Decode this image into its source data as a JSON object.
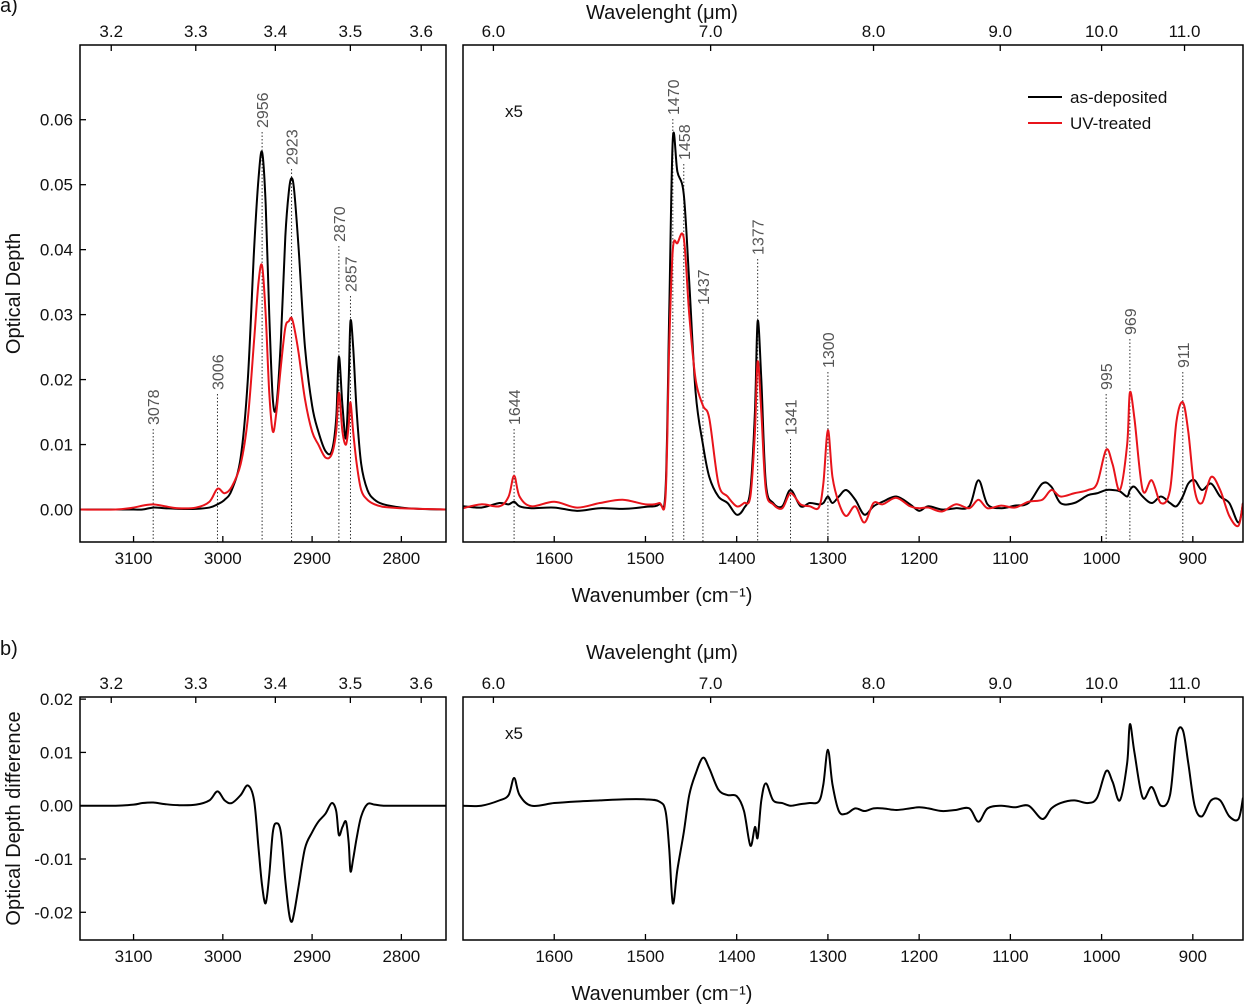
{
  "chart_data": [
    {
      "type": "line",
      "panel_label": "a)",
      "ylabel": "Optical Depth",
      "x": [
        3160,
        3120,
        3100,
        3090,
        3078,
        3065,
        3050,
        3030,
        3015,
        3006,
        2998,
        2990,
        2980,
        2972,
        2965,
        2960,
        2956,
        2952,
        2948,
        2944,
        2940,
        2935,
        2930,
        2926,
        2923,
        2920,
        2915,
        2908,
        2900,
        2893,
        2885,
        2878,
        2873,
        2870,
        2866,
        2862,
        2859,
        2857,
        2854,
        2850,
        2845,
        2838,
        2830,
        2820,
        2800,
        2780,
        2750
      ],
      "xlim": [
        3160,
        2750
      ],
      "xticks": [
        3100,
        3000,
        2900,
        2800
      ],
      "x2ticks": [
        3.2,
        3.3,
        3.4,
        3.5,
        3.6
      ],
      "ylim": [
        -0.005,
        0.0715
      ],
      "yticks": [
        {
          "value": 0,
          "label": "0.00"
        },
        0.01,
        0.02,
        0.03,
        0.04,
        0.05,
        0.06
      ],
      "series": [
        {
          "color": "#000000",
          "values": [
            0,
            0,
            0,
            0,
            0.0003,
            0.0002,
            0.0001,
            0.0001,
            0.0003,
            0.0008,
            0.0015,
            0.003,
            0.008,
            0.02,
            0.04,
            0.051,
            0.055,
            0.047,
            0.03,
            0.017,
            0.016,
            0.026,
            0.042,
            0.049,
            0.051,
            0.049,
            0.04,
            0.025,
            0.016,
            0.012,
            0.009,
            0.009,
            0.014,
            0.0235,
            0.016,
            0.011,
            0.02,
            0.029,
            0.025,
            0.015,
            0.007,
            0.003,
            0.0015,
            0.0008,
            0.0003,
            0.0001,
            0
          ]
        },
        {
          "color": "#e8141b",
          "values": [
            0,
            0,
            0.0003,
            0.0006,
            0.0008,
            0.0005,
            0.0002,
            0.0003,
            0.0012,
            0.0032,
            0.0025,
            0.0035,
            0.007,
            0.014,
            0.026,
            0.035,
            0.0375,
            0.03,
            0.018,
            0.012,
            0.015,
            0.022,
            0.028,
            0.029,
            0.0295,
            0.028,
            0.024,
            0.017,
            0.012,
            0.01,
            0.008,
            0.0085,
            0.012,
            0.018,
            0.012,
            0.01,
            0.013,
            0.0165,
            0.012,
            0.007,
            0.003,
            0.0015,
            0.0008,
            0.0004,
            0.0002,
            0.0001,
            0
          ]
        }
      ],
      "peak_labels": [
        3078,
        3006,
        2956,
        2923,
        2870,
        2857
      ]
    },
    {
      "type": "line",
      "xlabel": "Wavenumber (cm⁻¹)",
      "x2label": "Wavelenght (μm)",
      "annotation": "x5",
      "legend": "upper right",
      "x": [
        1700,
        1680,
        1660,
        1650,
        1644,
        1638,
        1625,
        1600,
        1575,
        1550,
        1525,
        1500,
        1485,
        1478,
        1474,
        1470,
        1465,
        1458,
        1452,
        1445,
        1437,
        1430,
        1420,
        1410,
        1400,
        1392,
        1385,
        1380,
        1377,
        1373,
        1368,
        1360,
        1350,
        1341,
        1330,
        1320,
        1310,
        1305,
        1300,
        1295,
        1288,
        1280,
        1270,
        1260,
        1250,
        1240,
        1225,
        1210,
        1200,
        1190,
        1175,
        1160,
        1145,
        1135,
        1125,
        1110,
        1095,
        1080,
        1065,
        1055,
        1045,
        1030,
        1015,
        1005,
        995,
        988,
        980,
        972,
        969,
        964,
        955,
        945,
        935,
        925,
        918,
        911,
        905,
        898,
        890,
        880,
        870,
        860,
        850,
        845
      ],
      "xlim": [
        1700,
        845
      ],
      "xticks": [
        1600,
        1500,
        1400,
        1300,
        1200,
        1100,
        1000,
        900
      ],
      "x2ticks": [
        {
          "value": 6,
          "label": "6.0"
        },
        {
          "value": 7,
          "label": "7.0"
        },
        {
          "value": 8,
          "label": "8.0"
        },
        {
          "value": 9,
          "label": "9.0"
        },
        {
          "value": 10,
          "label": "10.0"
        },
        {
          "value": 11,
          "label": "11.0"
        }
      ],
      "ylim": [
        -0.005,
        0.0715
      ],
      "series": [
        {
          "name": "as-deposited",
          "color": "#000000",
          "values": [
            0.0005,
            0.0003,
            0.001,
            0.0008,
            0.0012,
            0.0005,
            0.0002,
            0.0003,
            -0.0002,
            0.0002,
            0.0001,
            0.0004,
            0.0008,
            0.003,
            0.03,
            0.057,
            0.052,
            0.0485,
            0.035,
            0.018,
            0.01,
            0.005,
            0.002,
            0.001,
            -0.0008,
            0.0002,
            0.003,
            0.015,
            0.029,
            0.02,
            0.004,
            0.001,
            0.0005,
            0.003,
            0.0005,
            0.001,
            0.0008,
            0.001,
            0.002,
            0.001,
            0.002,
            0.003,
            0.0015,
            -0.0008,
            0.0005,
            0.0012,
            0.002,
            0.0008,
            -0.0002,
            0.0005,
            0,
            0.0002,
            0.0005,
            0.0045,
            0.0008,
            0.0002,
            0.0006,
            0.001,
            0.004,
            0.0035,
            0.001,
            0.001,
            0.0022,
            0.0025,
            0.003,
            0.003,
            0.0028,
            0.002,
            0.003,
            0.0035,
            0.002,
            0.001,
            0.002,
            0.001,
            0.0005,
            0.002,
            0.004,
            0.0045,
            0.003,
            0.004,
            0.002,
            0.001,
            -0.002,
            0.001
          ]
        },
        {
          "name": "UV-treated",
          "color": "#e8141b",
          "values": [
            0.0002,
            0.0008,
            0.0005,
            0.002,
            0.0052,
            0.002,
            0.0005,
            0.0012,
            0.0003,
            0.001,
            0.0015,
            0.0008,
            0.001,
            0.002,
            0.025,
            0.04,
            0.041,
            0.0418,
            0.03,
            0.02,
            0.016,
            0.014,
            0.004,
            0.002,
            0.0005,
            0.001,
            0.002,
            0.012,
            0.0228,
            0.015,
            0.003,
            0.0008,
            0.0002,
            0.0025,
            0.0008,
            0.0005,
            0.0003,
            0.004,
            0.0122,
            0.005,
            0.001,
            -0.001,
            0.0005,
            -0.002,
            0.001,
            0.0008,
            0.0018,
            0.0005,
            0.0002,
            0.0003,
            -0.0003,
            0.0008,
            0.0002,
            0.0015,
            0.0002,
            0.0006,
            0.0003,
            0.0012,
            0.0015,
            0.003,
            0.002,
            0.0025,
            0.003,
            0.004,
            0.0092,
            0.007,
            0.003,
            0.01,
            0.018,
            0.014,
            0.003,
            0.0045,
            0.001,
            0.003,
            0.0135,
            0.0165,
            0.012,
            0.003,
            0.001,
            0.005,
            0.003,
            -0.001,
            -0.0025,
            0.001
          ]
        }
      ],
      "peak_labels": [
        1644,
        1470,
        1458,
        1437,
        1377,
        1341,
        1300,
        995,
        969,
        911
      ]
    },
    {
      "type": "line",
      "panel_label": "b)",
      "ylabel": "Optical Depth difference",
      "x": [
        3160,
        3120,
        3100,
        3090,
        3078,
        3065,
        3050,
        3030,
        3015,
        3006,
        2998,
        2990,
        2980,
        2972,
        2965,
        2960,
        2956,
        2952,
        2948,
        2944,
        2940,
        2935,
        2930,
        2926,
        2923,
        2920,
        2915,
        2908,
        2900,
        2893,
        2885,
        2878,
        2873,
        2870,
        2866,
        2862,
        2859,
        2857,
        2854,
        2850,
        2845,
        2838,
        2830,
        2820,
        2800,
        2780,
        2750
      ],
      "xlim": [
        3160,
        2750
      ],
      "xticks": [
        3100,
        3000,
        2900,
        2800
      ],
      "x2ticks": [
        3.2,
        3.3,
        3.4,
        3.5,
        3.6
      ],
      "ylim": [
        -0.0252,
        0.0204
      ],
      "yticks": [
        -0.02,
        -0.01,
        {
          "value": 0,
          "label": "0.00"
        },
        0.01,
        0.02
      ],
      "series": [
        {
          "color": "#000000",
          "values": [
            0,
            0,
            0.0002,
            0.0005,
            0.0006,
            0.0003,
            0.0001,
            0.0002,
            0.001,
            0.0027,
            0.001,
            0.0005,
            0.002,
            0.0038,
            0.001,
            -0.008,
            -0.015,
            -0.0183,
            -0.013,
            -0.005,
            -0.0033,
            -0.005,
            -0.014,
            -0.02,
            -0.0218,
            -0.02,
            -0.015,
            -0.008,
            -0.005,
            -0.003,
            -0.0015,
            0.0005,
            -0.001,
            -0.0055,
            -0.004,
            -0.003,
            -0.007,
            -0.0123,
            -0.01,
            -0.006,
            -0.002,
            0.0003,
            0.0002,
            0,
            0,
            0,
            0
          ]
        }
      ]
    },
    {
      "type": "line",
      "xlabel": "Wavenumber (cm⁻¹)",
      "x2label": "Wavelenght (μm)",
      "annotation": "x5",
      "x": [
        1700,
        1680,
        1660,
        1650,
        1644,
        1638,
        1625,
        1600,
        1575,
        1550,
        1525,
        1500,
        1485,
        1478,
        1474,
        1470,
        1465,
        1458,
        1452,
        1445,
        1437,
        1430,
        1420,
        1410,
        1400,
        1392,
        1385,
        1380,
        1377,
        1373,
        1368,
        1360,
        1350,
        1341,
        1330,
        1320,
        1310,
        1305,
        1300,
        1295,
        1288,
        1280,
        1270,
        1260,
        1250,
        1240,
        1225,
        1210,
        1200,
        1190,
        1175,
        1160,
        1145,
        1135,
        1125,
        1110,
        1095,
        1080,
        1065,
        1055,
        1045,
        1030,
        1015,
        1005,
        995,
        988,
        980,
        972,
        969,
        964,
        955,
        945,
        935,
        925,
        918,
        911,
        905,
        898,
        890,
        880,
        870,
        860,
        850,
        845
      ],
      "xlim": [
        1700,
        845
      ],
      "xticks": [
        1600,
        1500,
        1400,
        1300,
        1200,
        1100,
        1000,
        900
      ],
      "x2ticks": [
        {
          "value": 6,
          "label": "6.0"
        },
        {
          "value": 7,
          "label": "7.0"
        },
        {
          "value": 8,
          "label": "8.0"
        },
        {
          "value": 9,
          "label": "9.0"
        },
        {
          "value": 10,
          "label": "10.0"
        },
        {
          "value": 11,
          "label": "11.0"
        }
      ],
      "ylim": [
        -0.0252,
        0.0204
      ],
      "series": [
        {
          "color": "#000000",
          "values": [
            0,
            0,
            0.001,
            0.002,
            0.0052,
            0.002,
            0,
            0.0005,
            0.0008,
            0.001,
            0.0012,
            0.0012,
            0.0008,
            -0.001,
            -0.008,
            -0.0183,
            -0.012,
            -0.005,
            0.002,
            0.006,
            0.009,
            0.007,
            0.003,
            0.002,
            0.0018,
            -0.001,
            -0.0075,
            -0.004,
            -0.006,
            0.001,
            0.0042,
            0.001,
            0.0005,
            0,
            0.0003,
            0.0005,
            0.0008,
            0.004,
            0.0105,
            0.004,
            -0.001,
            -0.0015,
            -0.0005,
            -0.001,
            -0.0005,
            -0.0005,
            -0.0008,
            -0.0005,
            -0.0003,
            -0.0005,
            -0.001,
            -0.0008,
            -0.0005,
            -0.003,
            -0.0005,
            0,
            -0.0003,
            0,
            -0.0025,
            -0.0005,
            0.0005,
            0.001,
            0.0005,
            0.0015,
            0.0065,
            0.0045,
            0.001,
            0.008,
            0.0153,
            0.01,
            0.0015,
            0.0035,
            0,
            0.002,
            0.013,
            0.0142,
            0.008,
            0,
            -0.002,
            0.001,
            0.001,
            -0.002,
            -0.0025,
            0.0015
          ]
        }
      ]
    }
  ]
}
